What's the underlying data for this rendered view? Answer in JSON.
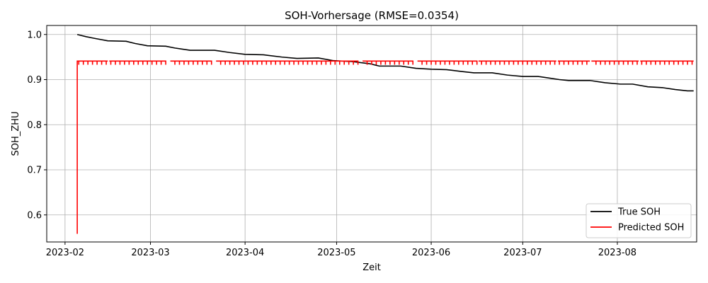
{
  "chart_data": {
    "type": "line",
    "title": "SOH-Vorhersage (RMSE=0.0354)",
    "xlabel": "Zeit",
    "ylabel": "SOH_ZHU",
    "x_axis_type": "date",
    "xlim": [
      "2023-01-26",
      "2023-08-27"
    ],
    "ylim": [
      0.54,
      1.02
    ],
    "x_ticks": [
      "2023-02-01",
      "2023-03-01",
      "2023-04-01",
      "2023-05-01",
      "2023-06-01",
      "2023-07-01",
      "2023-08-01"
    ],
    "x_tick_labels": [
      "2023-02",
      "2023-03",
      "2023-04",
      "2023-05",
      "2023-06",
      "2023-07",
      "2023-08"
    ],
    "y_ticks": [
      0.6,
      0.7,
      0.8,
      0.9,
      1.0
    ],
    "y_tick_labels": [
      "0.6",
      "0.7",
      "0.8",
      "0.9",
      "1.0"
    ],
    "grid": true,
    "legend_position": "bottom-right",
    "series": [
      {
        "name": "True SOH",
        "color": "#000000",
        "points": [
          [
            "2023-02-05",
            1.0
          ],
          [
            "2023-02-08",
            0.995
          ],
          [
            "2023-02-11",
            0.991
          ],
          [
            "2023-02-15",
            0.986
          ],
          [
            "2023-02-21",
            0.985
          ],
          [
            "2023-02-24",
            0.98
          ],
          [
            "2023-02-28",
            0.975
          ],
          [
            "2023-03-06",
            0.974
          ],
          [
            "2023-03-09",
            0.97
          ],
          [
            "2023-03-14",
            0.965
          ],
          [
            "2023-03-22",
            0.965
          ],
          [
            "2023-03-27",
            0.96
          ],
          [
            "2023-04-01",
            0.956
          ],
          [
            "2023-04-07",
            0.955
          ],
          [
            "2023-04-13",
            0.95
          ],
          [
            "2023-04-18",
            0.947
          ],
          [
            "2023-04-25",
            0.948
          ],
          [
            "2023-04-30",
            0.942
          ],
          [
            "2023-05-06",
            0.94
          ],
          [
            "2023-05-12",
            0.935
          ],
          [
            "2023-05-15",
            0.93
          ],
          [
            "2023-05-22",
            0.93
          ],
          [
            "2023-05-27",
            0.925
          ],
          [
            "2023-06-01",
            0.923
          ],
          [
            "2023-06-06",
            0.922
          ],
          [
            "2023-06-11",
            0.918
          ],
          [
            "2023-06-15",
            0.915
          ],
          [
            "2023-06-21",
            0.915
          ],
          [
            "2023-06-26",
            0.91
          ],
          [
            "2023-07-01",
            0.907
          ],
          [
            "2023-07-06",
            0.907
          ],
          [
            "2023-07-10",
            0.903
          ],
          [
            "2023-07-13",
            0.9
          ],
          [
            "2023-07-16",
            0.898
          ],
          [
            "2023-07-23",
            0.898
          ],
          [
            "2023-07-28",
            0.893
          ],
          [
            "2023-08-02",
            0.89
          ],
          [
            "2023-08-06",
            0.89
          ],
          [
            "2023-08-11",
            0.884
          ],
          [
            "2023-08-16",
            0.882
          ],
          [
            "2023-08-20",
            0.878
          ],
          [
            "2023-08-24",
            0.875
          ],
          [
            "2023-08-26",
            0.875
          ]
        ]
      },
      {
        "name": "Predicted SOH",
        "color": "#ff0000",
        "initial_value": 0.558,
        "baseline": 0.941,
        "spike_low": 0.933,
        "date_range": [
          "2023-02-05",
          "2023-08-26"
        ],
        "gaps": [
          [
            "2023-02-15",
            "2023-02-16"
          ],
          [
            "2023-03-06",
            "2023-03-08"
          ],
          [
            "2023-03-21",
            "2023-03-23"
          ],
          [
            "2023-05-08",
            "2023-05-10"
          ],
          [
            "2023-05-26",
            "2023-05-28"
          ],
          [
            "2023-06-16",
            "2023-06-17"
          ],
          [
            "2023-07-12",
            "2023-07-13"
          ],
          [
            "2023-07-23",
            "2023-07-24"
          ],
          [
            "2023-08-08",
            "2023-08-09"
          ]
        ]
      }
    ]
  }
}
